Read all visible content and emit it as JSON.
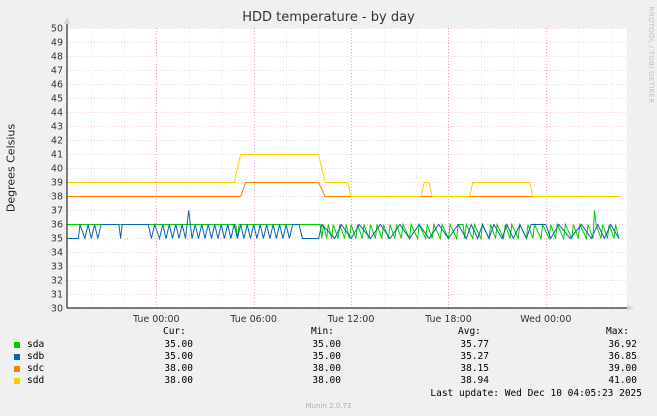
{
  "chart_data": {
    "type": "line",
    "title": "HDD temperature - by day",
    "ylabel": "Degrees Celsius",
    "xlabel": "",
    "ylim": [
      30,
      50
    ],
    "y_ticks": [
      30,
      31,
      32,
      33,
      34,
      35,
      36,
      37,
      38,
      39,
      40,
      41,
      42,
      43,
      44,
      45,
      46,
      47,
      48,
      49,
      50
    ],
    "x_ticks": [
      "Tue 00:00",
      "Tue 06:00",
      "Tue 12:00",
      "Tue 18:00",
      "Wed 00:00"
    ],
    "x_range_hours": [
      -5.5,
      29.0
    ],
    "grid": true,
    "legend_placement": "bottom",
    "series": [
      {
        "name": "sda",
        "color": "#00cc00",
        "points": [
          [
            -5.5,
            36
          ],
          [
            4.9,
            36
          ],
          [
            5.0,
            35
          ],
          [
            5.1,
            36
          ],
          [
            10.1,
            36
          ],
          [
            10.2,
            35
          ],
          [
            10.3,
            36
          ],
          [
            10.5,
            35
          ],
          [
            10.6,
            36
          ],
          [
            10.8,
            35
          ],
          [
            10.9,
            36
          ],
          [
            11.2,
            35
          ],
          [
            11.3,
            36
          ],
          [
            11.6,
            35
          ],
          [
            11.7,
            36
          ],
          [
            11.9,
            35
          ],
          [
            12.0,
            36
          ],
          [
            12.3,
            35
          ],
          [
            12.4,
            36
          ],
          [
            12.7,
            35
          ],
          [
            12.8,
            36
          ],
          [
            13.1,
            35
          ],
          [
            13.2,
            36
          ],
          [
            13.5,
            35
          ],
          [
            13.6,
            36
          ],
          [
            13.9,
            35
          ],
          [
            14.0,
            36
          ],
          [
            14.3,
            35
          ],
          [
            14.4,
            36
          ],
          [
            14.7,
            35
          ],
          [
            14.8,
            36
          ],
          [
            15.1,
            35
          ],
          [
            15.2,
            36
          ],
          [
            15.6,
            35
          ],
          [
            15.7,
            36
          ],
          [
            16.1,
            35
          ],
          [
            16.2,
            36
          ],
          [
            16.6,
            35
          ],
          [
            16.7,
            36
          ],
          [
            17.0,
            35
          ],
          [
            17.1,
            36
          ],
          [
            17.5,
            35
          ],
          [
            17.6,
            36
          ],
          [
            18.0,
            35
          ],
          [
            18.1,
            36
          ],
          [
            18.5,
            35
          ],
          [
            18.6,
            36
          ],
          [
            18.9,
            36
          ],
          [
            19.0,
            35
          ],
          [
            19.1,
            36
          ],
          [
            19.5,
            35
          ],
          [
            19.6,
            36
          ],
          [
            20.0,
            35
          ],
          [
            20.1,
            36
          ],
          [
            20.5,
            35
          ],
          [
            20.6,
            36
          ],
          [
            20.9,
            35
          ],
          [
            21.0,
            36
          ],
          [
            21.4,
            35
          ],
          [
            21.5,
            36
          ],
          [
            21.8,
            35
          ],
          [
            21.9,
            36
          ],
          [
            22.3,
            35
          ],
          [
            22.4,
            36
          ],
          [
            22.8,
            35
          ],
          [
            22.9,
            36
          ],
          [
            23.2,
            35
          ],
          [
            23.3,
            36
          ],
          [
            23.7,
            35
          ],
          [
            23.8,
            36
          ],
          [
            24.2,
            35
          ],
          [
            24.3,
            36
          ],
          [
            24.6,
            35
          ],
          [
            24.7,
            36
          ],
          [
            25.1,
            35
          ],
          [
            25.2,
            36
          ],
          [
            25.6,
            35
          ],
          [
            25.7,
            36
          ],
          [
            26.0,
            35
          ],
          [
            26.1,
            36
          ],
          [
            26.5,
            35
          ],
          [
            26.6,
            36
          ],
          [
            26.9,
            35
          ],
          [
            27.0,
            37
          ],
          [
            27.1,
            36
          ],
          [
            27.4,
            35
          ],
          [
            27.5,
            36
          ],
          [
            27.8,
            35
          ],
          [
            27.9,
            36
          ],
          [
            28.2,
            35
          ],
          [
            28.3,
            36
          ],
          [
            28.5,
            35
          ]
        ]
      },
      {
        "name": "sdb",
        "color": "#0066b3",
        "points": [
          [
            -5.5,
            35
          ],
          [
            -4.8,
            35
          ],
          [
            -4.7,
            36
          ],
          [
            -4.4,
            35
          ],
          [
            -4.2,
            36
          ],
          [
            -4.0,
            35
          ],
          [
            -3.8,
            36
          ],
          [
            -3.6,
            35
          ],
          [
            -3.4,
            36
          ],
          [
            -3.0,
            36
          ],
          [
            -2.3,
            36
          ],
          [
            -2.2,
            35
          ],
          [
            -2.1,
            36
          ],
          [
            -0.5,
            36
          ],
          [
            -0.3,
            35
          ],
          [
            -0.1,
            36
          ],
          [
            0.2,
            35
          ],
          [
            0.4,
            36
          ],
          [
            0.6,
            35
          ],
          [
            0.8,
            36
          ],
          [
            1.0,
            35
          ],
          [
            1.2,
            36
          ],
          [
            1.4,
            35
          ],
          [
            1.6,
            36
          ],
          [
            1.8,
            35
          ],
          [
            2.0,
            37
          ],
          [
            2.2,
            35
          ],
          [
            2.4,
            36
          ],
          [
            2.6,
            35
          ],
          [
            2.8,
            36
          ],
          [
            3.0,
            35
          ],
          [
            3.2,
            36
          ],
          [
            3.4,
            35
          ],
          [
            3.6,
            36
          ],
          [
            3.8,
            35
          ],
          [
            4.0,
            36
          ],
          [
            4.2,
            35
          ],
          [
            4.4,
            36
          ],
          [
            4.6,
            35
          ],
          [
            4.8,
            36
          ],
          [
            5.0,
            35
          ],
          [
            5.2,
            36
          ],
          [
            5.4,
            35
          ],
          [
            5.6,
            36
          ],
          [
            5.8,
            35
          ],
          [
            6.0,
            36
          ],
          [
            6.2,
            35
          ],
          [
            6.4,
            36
          ],
          [
            6.6,
            35
          ],
          [
            6.8,
            36
          ],
          [
            7.0,
            35
          ],
          [
            7.2,
            36
          ],
          [
            7.4,
            35
          ],
          [
            7.6,
            36
          ],
          [
            7.8,
            35
          ],
          [
            8.0,
            36
          ],
          [
            8.2,
            35
          ],
          [
            8.4,
            36
          ],
          [
            8.8,
            36
          ],
          [
            9.0,
            35
          ],
          [
            10.0,
            35
          ],
          [
            10.2,
            36
          ],
          [
            11.0,
            35
          ],
          [
            11.4,
            36
          ],
          [
            12.0,
            35
          ],
          [
            12.5,
            36
          ],
          [
            13.2,
            35
          ],
          [
            13.8,
            36
          ],
          [
            14.4,
            35
          ],
          [
            15.0,
            36
          ],
          [
            15.6,
            35
          ],
          [
            16.2,
            36
          ],
          [
            16.8,
            35
          ],
          [
            17.4,
            36
          ],
          [
            18.0,
            35
          ],
          [
            18.6,
            36
          ],
          [
            19.1,
            35
          ],
          [
            19.4,
            36
          ],
          [
            19.8,
            35
          ],
          [
            20.1,
            36
          ],
          [
            20.5,
            35
          ],
          [
            20.8,
            36
          ],
          [
            21.3,
            35
          ],
          [
            21.6,
            36
          ],
          [
            22.0,
            35
          ],
          [
            22.4,
            36
          ],
          [
            22.8,
            35
          ],
          [
            23.1,
            36
          ],
          [
            24.0,
            36
          ],
          [
            24.3,
            35
          ],
          [
            24.8,
            36
          ],
          [
            25.5,
            35
          ],
          [
            26.2,
            36
          ],
          [
            26.8,
            35
          ],
          [
            27.2,
            36
          ],
          [
            27.6,
            35
          ],
          [
            28.0,
            36
          ],
          [
            28.5,
            35
          ]
        ]
      },
      {
        "name": "sdc",
        "color": "#ff8000",
        "points": [
          [
            -5.5,
            38
          ],
          [
            5.2,
            38
          ],
          [
            5.5,
            39
          ],
          [
            10.0,
            39
          ],
          [
            10.4,
            38
          ],
          [
            28.5,
            38
          ]
        ]
      },
      {
        "name": "sdd",
        "color": "#ffcc00",
        "points": [
          [
            -5.5,
            39
          ],
          [
            4.8,
            39
          ],
          [
            5.0,
            40
          ],
          [
            5.2,
            41
          ],
          [
            10.0,
            41
          ],
          [
            10.2,
            40
          ],
          [
            10.4,
            39
          ],
          [
            11.8,
            39
          ],
          [
            12.0,
            38
          ],
          [
            16.3,
            38
          ],
          [
            16.5,
            39
          ],
          [
            16.8,
            39
          ],
          [
            17.0,
            38
          ],
          [
            19.3,
            38
          ],
          [
            19.5,
            39
          ],
          [
            23.0,
            39
          ],
          [
            23.2,
            38
          ],
          [
            28.5,
            38
          ]
        ]
      }
    ]
  },
  "legend": {
    "headers": {
      "cur": "Cur:",
      "min": "Min:",
      "avg": "Avg:",
      "max": "Max:"
    },
    "rows": [
      {
        "name": "sda",
        "color": "#00cc00",
        "cur": "35.00",
        "min": "35.00",
        "avg": "35.77",
        "max": "36.92"
      },
      {
        "name": "sdb",
        "color": "#0066b3",
        "cur": "35.00",
        "min": "35.00",
        "avg": "35.27",
        "max": "36.85"
      },
      {
        "name": "sdc",
        "color": "#ff8000",
        "cur": "38.00",
        "min": "38.00",
        "avg": "38.15",
        "max": "39.00"
      },
      {
        "name": "sdd",
        "color": "#ffcc00",
        "cur": "38.00",
        "min": "38.00",
        "avg": "38.94",
        "max": "41.00"
      }
    ]
  },
  "last_update": "Last update: Wed Dec 10 04:05:23 2025",
  "watermark": "RRDTOOL / TOBI OETIKER",
  "version": "Munin 2.0.73"
}
